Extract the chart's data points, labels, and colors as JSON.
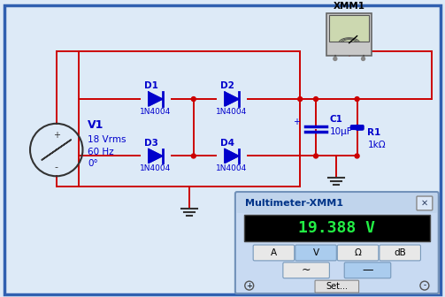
{
  "bg_color": "#ddeaf7",
  "border_color": "#3060b0",
  "wire_color": "#cc0000",
  "component_color": "#0000cc",
  "meter_label": "Multimeter-XMM1",
  "meter_value": "19.388 V",
  "xmm_label": "XMM1",
  "meter_frame_color": "#c8daf2",
  "meter_border_color": "#7090b8",
  "source_label": "V1",
  "source_line1": "18 Vrms",
  "source_line2": "60 Hz",
  "source_line3": "0°",
  "cap_plus": "+",
  "cap_label1": "C1",
  "cap_label2": "10μF",
  "res_label1": "R1",
  "res_label2": "1kΩ",
  "d1": "D1",
  "d2": "D2",
  "d3": "D3",
  "d4": "D4",
  "dmodel": "1N4004",
  "btn_row1": [
    "A",
    "V",
    "Ω",
    "dB"
  ],
  "btn_row2_labels": [
    "~",
    "—"
  ],
  "btn_active_color": "#aaccee",
  "btn_inactive_color": "#e8e8e8",
  "btn_active_indices_row1": [
    1
  ],
  "btn_active_indices_row2": [
    1
  ],
  "set_label": "Set...",
  "plus_label": "+",
  "minus_label": "-"
}
